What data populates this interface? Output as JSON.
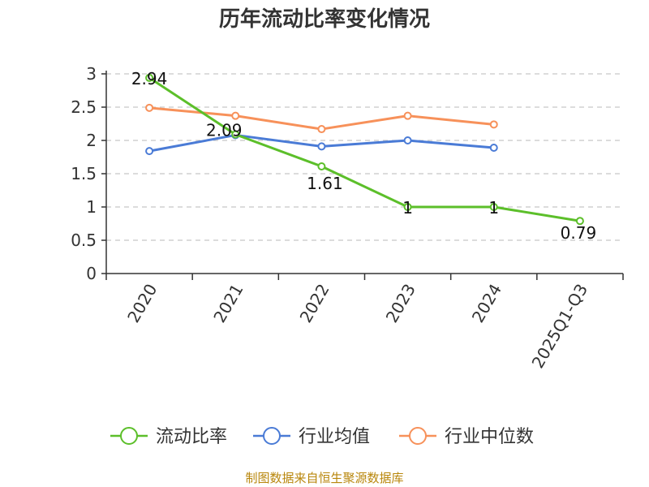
{
  "chart_data": {
    "type": "line",
    "title": "历年流动比率变化情况",
    "categories": [
      "2020",
      "2021",
      "2022",
      "2023",
      "2024",
      "2025Q1-Q3"
    ],
    "ylim": [
      0,
      3
    ],
    "yticks": [
      "0",
      "0.5",
      "1",
      "1.5",
      "2",
      "2.5",
      "3"
    ],
    "grid": true,
    "legend_position": "bottom",
    "series": [
      {
        "name": "流动比率",
        "color": "#5cbf2a",
        "values": [
          2.94,
          2.09,
          1.61,
          1,
          1,
          0.79
        ],
        "labels": [
          "2.94",
          "2.09",
          "1.61",
          "1",
          "1",
          "0.79"
        ]
      },
      {
        "name": "行业均值",
        "color": "#4a7bd6",
        "values": [
          1.84,
          2.08,
          1.91,
          2.0,
          1.89,
          null
        ]
      },
      {
        "name": "行业中位数",
        "color": "#f7915a",
        "values": [
          2.49,
          2.37,
          2.17,
          2.37,
          2.24,
          null
        ]
      }
    ],
    "source": "制图数据来自恒生聚源数据库"
  }
}
